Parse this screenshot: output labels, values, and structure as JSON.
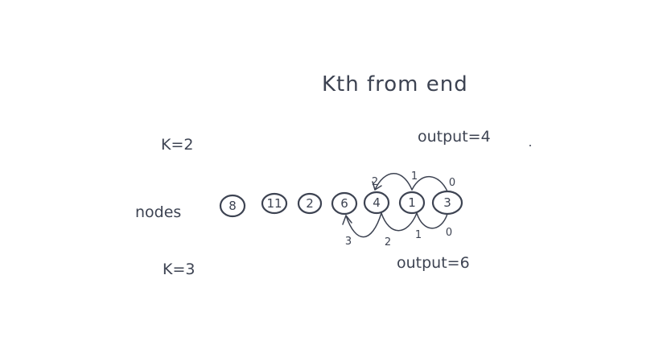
{
  "title": "Kth from end",
  "nodes_label": "nodes",
  "nodes": [
    "8",
    "11",
    "2",
    "6",
    "4",
    "1",
    "3"
  ],
  "example_top": {
    "k_label": "K=2",
    "output_label": "output=4",
    "step_labels": [
      "2",
      "1",
      "0"
    ]
  },
  "example_bottom": {
    "k_label": "K=3",
    "output_label": "output=6",
    "step_labels": [
      "3",
      "2",
      "1",
      "0"
    ]
  },
  "colors": {
    "ink": "#3d4352",
    "background": "#ffffff"
  }
}
